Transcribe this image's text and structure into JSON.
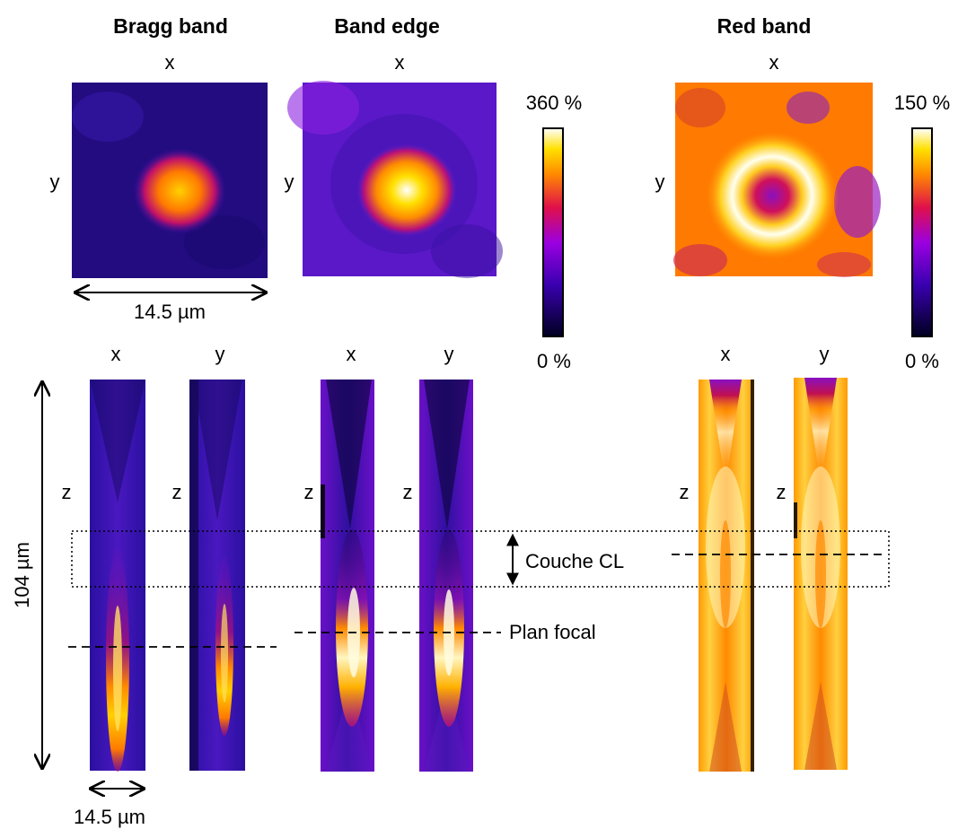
{
  "panels": {
    "bragg": {
      "title": "Bragg band"
    },
    "edge": {
      "title": "Band edge"
    },
    "red": {
      "title": "Red band"
    }
  },
  "axis": {
    "x": "x",
    "y": "y",
    "z": "z"
  },
  "colorbars": {
    "left": {
      "max": "360 %",
      "min": "0 %"
    },
    "right": {
      "max": "150 %",
      "min": "0 %"
    }
  },
  "scale": {
    "horizontal": "14.5 µm",
    "vertical": "104 µm"
  },
  "annotations": {
    "layer": "Couche CL",
    "focal": "Plan focal"
  },
  "colors": {
    "colormap": "gnuplot-hot",
    "low": "#000033",
    "mid": "#8b00ff",
    "high": "#ffffff"
  }
}
